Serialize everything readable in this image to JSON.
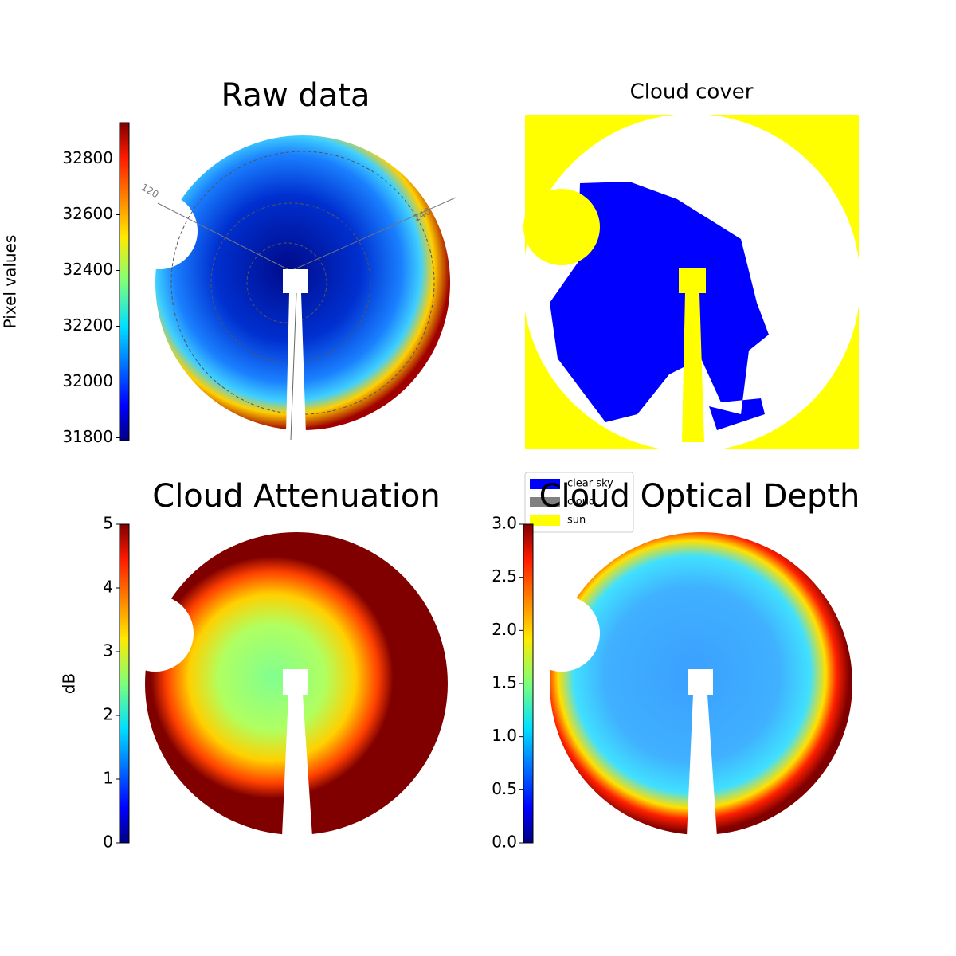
{
  "chart_data": [
    {
      "type": "image",
      "title": "Raw data",
      "colorbar_label": "Pixel values",
      "colormap": "jet",
      "clim": [
        31790,
        32930
      ],
      "ticks": [
        31800,
        32000,
        32200,
        32400,
        32600,
        32800
      ],
      "annotations": [
        "120",
        "240"
      ]
    },
    {
      "type": "mask",
      "title": "Cloud cover",
      "legend": [
        {
          "name": "clear sky",
          "color": "#0000ff"
        },
        {
          "name": "cloud",
          "color": "#808080"
        },
        {
          "name": "sun",
          "color": "#ffff00"
        }
      ]
    },
    {
      "type": "image",
      "title": "Cloud Attenuation",
      "colorbar_label": "dB",
      "colormap": "jet",
      "clim": [
        0,
        5
      ],
      "ticks": [
        0,
        1,
        2,
        3,
        4,
        5
      ]
    },
    {
      "type": "image",
      "title": "Cloud Optical Depth",
      "colormap": "jet",
      "clim": [
        0,
        3
      ],
      "ticks": [
        {
          "value": 0,
          "label": "0.0"
        },
        0.5,
        {
          "value": 1,
          "label": "1.0"
        },
        1.5,
        {
          "value": 2,
          "label": "2.0"
        },
        2.5,
        {
          "value": 3,
          "label": "3.0"
        }
      ]
    }
  ]
}
